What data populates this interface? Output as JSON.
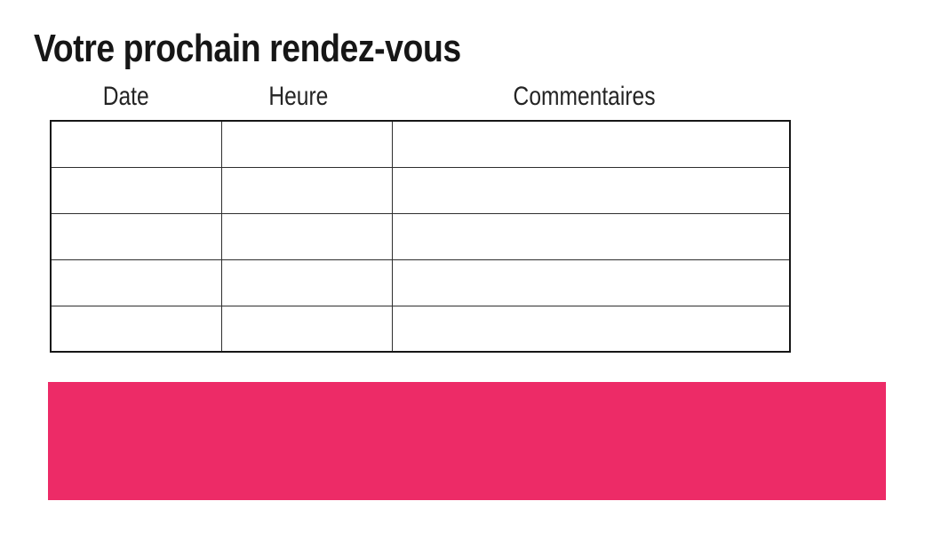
{
  "page": {
    "title": "Votre prochain rendez-vous"
  },
  "appointments_table": {
    "columns": [
      "Date",
      "Heure",
      "Commentaires"
    ],
    "rows": [
      [
        "",
        "",
        ""
      ],
      [
        "",
        "",
        ""
      ],
      [
        "",
        "",
        ""
      ],
      [
        "",
        "",
        ""
      ],
      [
        "",
        "",
        ""
      ]
    ]
  },
  "banner": {
    "text": ""
  },
  "colors": {
    "accent_pink": "#ED2B67",
    "table_border": "#2e2e2e",
    "text": "#161616"
  }
}
